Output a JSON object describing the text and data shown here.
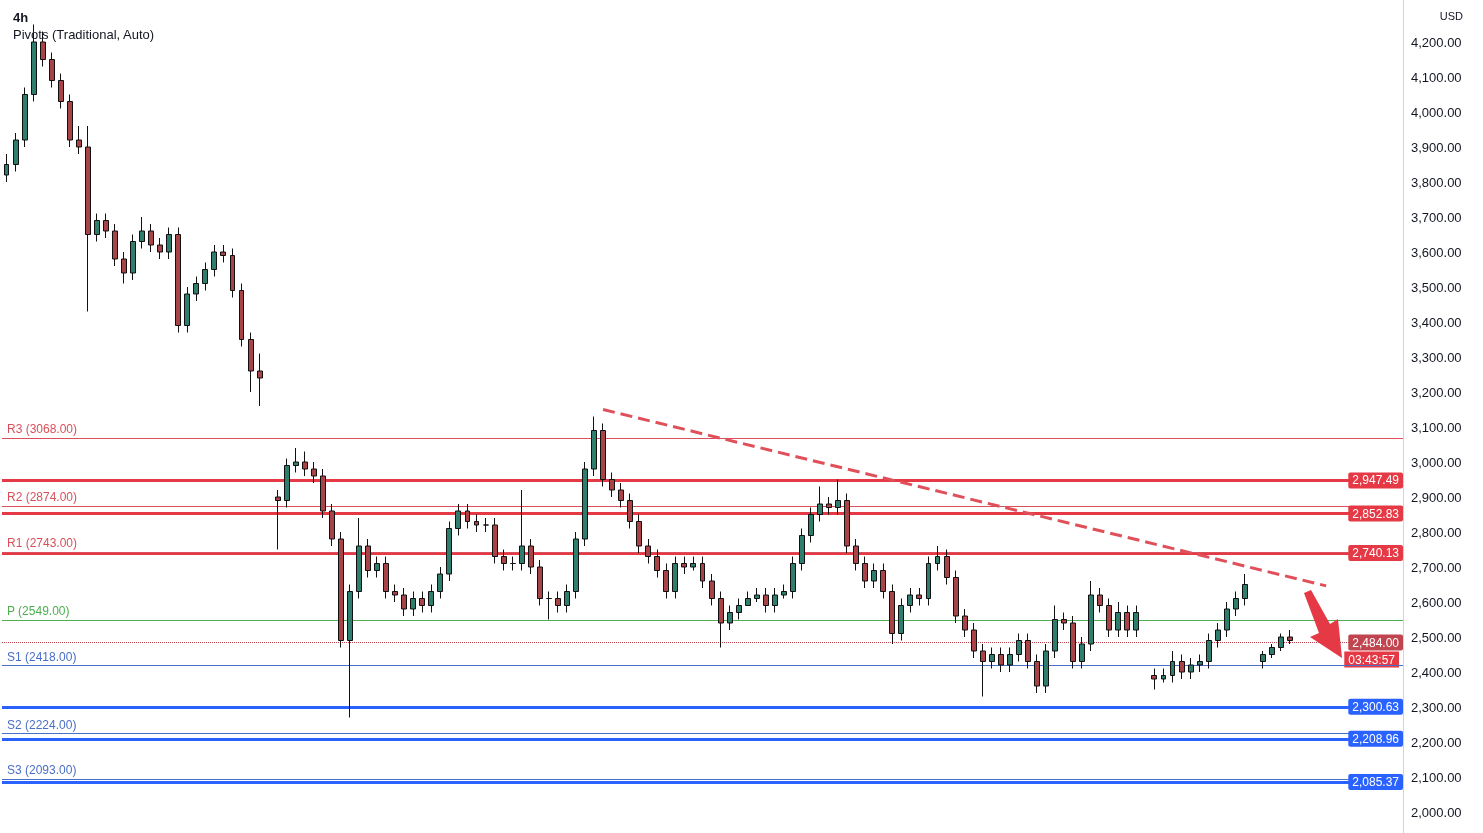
{
  "chart_data": {
    "type": "candlestick",
    "title": "4h",
    "subtitle": "Pivots (Traditional, Auto)",
    "tick_labels": "y",
    "categories": [
      null,
      null,
      null,
      null,
      null,
      null,
      null,
      null,
      null,
      null,
      null,
      null,
      null,
      null,
      null,
      null,
      null,
      null,
      null,
      null,
      null,
      null,
      null,
      null,
      null,
      null,
      null,
      null,
      null,
      null,
      null,
      null,
      null,
      null,
      null,
      null,
      null,
      null,
      null,
      null,
      null,
      null,
      null,
      null,
      null,
      null,
      null,
      null,
      null,
      null,
      null,
      null,
      null,
      null,
      null,
      null,
      null,
      null,
      null,
      null,
      null,
      null,
      null,
      null,
      null,
      null,
      null,
      null,
      null,
      null,
      null,
      null,
      null,
      null,
      null,
      null,
      null,
      null,
      null,
      null,
      null,
      null,
      null,
      null,
      null,
      null,
      null,
      null,
      null,
      null,
      null,
      null,
      null,
      null,
      null,
      null,
      null,
      null,
      null,
      null,
      null,
      null,
      null,
      null,
      null,
      null,
      null,
      null,
      null,
      null,
      null,
      null,
      null,
      null,
      null,
      null,
      null,
      null,
      null,
      null,
      null,
      null,
      null,
      null,
      null,
      null,
      null,
      null,
      null,
      null,
      null,
      null,
      null,
      null,
      null,
      null,
      null,
      null,
      null,
      null,
      null,
      null,
      null,
      null,
      null,
      null,
      null,
      null,
      null,
      null,
      null,
      null,
      null,
      null,
      null
    ],
    "ohlc": [
      [
        3820,
        3880,
        3800,
        3850
      ],
      [
        3850,
        3940,
        3830,
        3920
      ],
      [
        3920,
        4070,
        3900,
        4050
      ],
      [
        4050,
        4250,
        4030,
        4200
      ],
      [
        4200,
        4230,
        4130,
        4150
      ],
      [
        4150,
        4170,
        4070,
        4090
      ],
      [
        4090,
        4110,
        4010,
        4030
      ],
      [
        4030,
        4050,
        3900,
        3920
      ],
      [
        3920,
        3960,
        3880,
        3900
      ],
      [
        3900,
        3960,
        3430,
        3650
      ],
      [
        3650,
        3710,
        3630,
        3690
      ],
      [
        3690,
        3710,
        3640,
        3660
      ],
      [
        3660,
        3680,
        3560,
        3580
      ],
      [
        3580,
        3600,
        3510,
        3540
      ],
      [
        3540,
        3650,
        3520,
        3630
      ],
      [
        3630,
        3700,
        3610,
        3660
      ],
      [
        3660,
        3680,
        3600,
        3620
      ],
      [
        3620,
        3640,
        3580,
        3600
      ],
      [
        3600,
        3670,
        3580,
        3650
      ],
      [
        3650,
        3670,
        3370,
        3390
      ],
      [
        3390,
        3500,
        3370,
        3480
      ],
      [
        3480,
        3530,
        3460,
        3510
      ],
      [
        3510,
        3570,
        3490,
        3550
      ],
      [
        3550,
        3620,
        3530,
        3600
      ],
      [
        3600,
        3620,
        3570,
        3590
      ],
      [
        3590,
        3610,
        3470,
        3490
      ],
      [
        3490,
        3510,
        3330,
        3350
      ],
      [
        3350,
        3370,
        3200,
        3260
      ],
      [
        3260,
        3310,
        3160,
        3240
      ],
      null,
      [
        2900,
        2920,
        2750,
        2890
      ],
      [
        2890,
        3010,
        2870,
        2990
      ],
      [
        2990,
        3040,
        2970,
        3000
      ],
      [
        3000,
        3030,
        2960,
        2980
      ],
      [
        2980,
        3000,
        2940,
        2960
      ],
      [
        2960,
        2980,
        2840,
        2860
      ],
      [
        2860,
        2880,
        2760,
        2780
      ],
      [
        2780,
        2800,
        2470,
        2490
      ],
      [
        2490,
        2650,
        2270,
        2630
      ],
      [
        2630,
        2840,
        2610,
        2760
      ],
      [
        2760,
        2780,
        2670,
        2690
      ],
      [
        2690,
        2730,
        2670,
        2710
      ],
      [
        2710,
        2730,
        2610,
        2630
      ],
      [
        2630,
        2650,
        2600,
        2620
      ],
      [
        2620,
        2640,
        2560,
        2580
      ],
      [
        2580,
        2630,
        2560,
        2610
      ],
      [
        2610,
        2630,
        2570,
        2590
      ],
      [
        2590,
        2650,
        2570,
        2630
      ],
      [
        2630,
        2700,
        2610,
        2680
      ],
      [
        2680,
        2830,
        2660,
        2810
      ],
      [
        2810,
        2880,
        2790,
        2860
      ],
      [
        2860,
        2880,
        2810,
        2830
      ],
      [
        2830,
        2850,
        2800,
        2820
      ],
      [
        2820,
        2840,
        2800,
        2820
      ],
      [
        2820,
        2840,
        2710,
        2730
      ],
      [
        2730,
        2750,
        2690,
        2710
      ],
      [
        2710,
        2730,
        2690,
        2710
      ],
      [
        2710,
        2920,
        2690,
        2760
      ],
      [
        2760,
        2780,
        2680,
        2700
      ],
      [
        2700,
        2720,
        2590,
        2610
      ],
      [
        2610,
        2630,
        2550,
        2610
      ],
      [
        2610,
        2630,
        2570,
        2590
      ],
      [
        2590,
        2650,
        2570,
        2630
      ],
      [
        2630,
        2800,
        2610,
        2780
      ],
      [
        2780,
        3000,
        2760,
        2980
      ],
      [
        2980,
        3130,
        2960,
        3090
      ],
      [
        3090,
        3110,
        2930,
        2950
      ],
      [
        2950,
        2970,
        2900,
        2920
      ],
      [
        2920,
        2940,
        2870,
        2890
      ],
      [
        2890,
        2910,
        2810,
        2830
      ],
      [
        2830,
        2850,
        2740,
        2760
      ],
      [
        2760,
        2780,
        2710,
        2730
      ],
      [
        2730,
        2750,
        2670,
        2690
      ],
      [
        2690,
        2710,
        2610,
        2630
      ],
      [
        2630,
        2730,
        2610,
        2710
      ],
      [
        2710,
        2730,
        2680,
        2700
      ],
      [
        2700,
        2730,
        2690,
        2710
      ],
      [
        2710,
        2730,
        2640,
        2660
      ],
      [
        2660,
        2680,
        2590,
        2610
      ],
      [
        2610,
        2630,
        2470,
        2540
      ],
      [
        2540,
        2590,
        2520,
        2570
      ],
      [
        2570,
        2610,
        2550,
        2590
      ],
      [
        2590,
        2630,
        2590,
        2610
      ],
      [
        2610,
        2640,
        2600,
        2620
      ],
      [
        2620,
        2640,
        2570,
        2590
      ],
      [
        2590,
        2640,
        2570,
        2620
      ],
      [
        2620,
        2650,
        2610,
        2630
      ],
      [
        2630,
        2730,
        2610,
        2710
      ],
      [
        2710,
        2810,
        2690,
        2790
      ],
      [
        2790,
        2870,
        2770,
        2850
      ],
      [
        2850,
        2930,
        2830,
        2880
      ],
      [
        2880,
        2900,
        2850,
        2870
      ],
      [
        2870,
        2950,
        2850,
        2890
      ],
      [
        2890,
        2910,
        2740,
        2760
      ],
      [
        2760,
        2780,
        2690,
        2710
      ],
      [
        2710,
        2730,
        2640,
        2660
      ],
      [
        2660,
        2710,
        2640,
        2690
      ],
      [
        2690,
        2710,
        2610,
        2630
      ],
      [
        2630,
        2650,
        2480,
        2510
      ],
      [
        2510,
        2610,
        2490,
        2590
      ],
      [
        2590,
        2640,
        2570,
        2620
      ],
      [
        2620,
        2640,
        2590,
        2610
      ],
      [
        2610,
        2730,
        2590,
        2710
      ],
      [
        2710,
        2760,
        2690,
        2730
      ],
      [
        2730,
        2750,
        2650,
        2670
      ],
      [
        2670,
        2690,
        2540,
        2560
      ],
      [
        2560,
        2580,
        2500,
        2520
      ],
      [
        2520,
        2540,
        2440,
        2460
      ],
      [
        2460,
        2480,
        2330,
        2430
      ],
      [
        2430,
        2470,
        2410,
        2450
      ],
      [
        2450,
        2470,
        2400,
        2420
      ],
      [
        2420,
        2470,
        2400,
        2450
      ],
      [
        2450,
        2510,
        2430,
        2490
      ],
      [
        2490,
        2510,
        2410,
        2430
      ],
      [
        2430,
        2450,
        2340,
        2360
      ],
      [
        2360,
        2480,
        2340,
        2460
      ],
      [
        2460,
        2590,
        2440,
        2550
      ],
      [
        2550,
        2570,
        2520,
        2540
      ],
      [
        2540,
        2560,
        2410,
        2430
      ],
      [
        2430,
        2500,
        2410,
        2480
      ],
      [
        2480,
        2660,
        2460,
        2620
      ],
      [
        2620,
        2640,
        2570,
        2590
      ],
      [
        2590,
        2610,
        2500,
        2520
      ],
      [
        2520,
        2600,
        2500,
        2570
      ],
      [
        2570,
        2590,
        2500,
        2520
      ],
      [
        2520,
        2590,
        2500,
        2570
      ],
      null,
      [
        2390,
        2410,
        2350,
        2380
      ],
      [
        2380,
        2410,
        2370,
        2390
      ],
      [
        2390,
        2460,
        2370,
        2430
      ],
      [
        2430,
        2450,
        2380,
        2400
      ],
      [
        2400,
        2440,
        2380,
        2420
      ],
      [
        2420,
        2450,
        2400,
        2430
      ],
      [
        2430,
        2510,
        2410,
        2490
      ],
      [
        2490,
        2540,
        2470,
        2520
      ],
      [
        2520,
        2600,
        2500,
        2580
      ],
      [
        2580,
        2630,
        2560,
        2610
      ],
      [
        2610,
        2680,
        2590,
        2650
      ],
      null,
      [
        2430,
        2460,
        2410,
        2450
      ],
      [
        2450,
        2480,
        2440,
        2470
      ],
      [
        2470,
        2510,
        2460,
        2500
      ],
      [
        2500,
        2520,
        2480,
        2490
      ],
      null,
      null,
      null,
      null,
      null,
      null,
      null,
      null,
      null,
      null,
      null,
      null
    ],
    "series": [
      {
        "type": "line",
        "color": "#e0505a",
        "line_style": "dashed",
        "values": [
          null,
          null,
          null,
          null,
          null,
          null,
          null,
          null,
          null,
          null,
          null,
          null,
          null,
          null,
          null,
          null,
          null,
          null,
          null,
          null,
          null,
          null,
          null,
          null,
          null,
          null,
          null,
          null,
          null,
          null,
          null,
          null,
          null,
          null,
          null,
          null,
          null,
          null,
          null,
          null,
          null,
          null,
          null,
          null,
          null,
          null,
          null,
          null,
          null,
          null,
          null,
          null,
          null,
          null,
          null,
          null,
          null,
          null,
          null,
          null,
          null,
          null,
          null,
          null,
          null,
          null,
          3150,
          null,
          null,
          null,
          null,
          null,
          null,
          null,
          null,
          null,
          null,
          null,
          null,
          null,
          null,
          null,
          null,
          null,
          null,
          null,
          null,
          null,
          null,
          null,
          null,
          null,
          null,
          null,
          null,
          null,
          null,
          null,
          null,
          null,
          null,
          null,
          null,
          null,
          null,
          null,
          null,
          null,
          null,
          null,
          null,
          null,
          null,
          null,
          null,
          null,
          null,
          null,
          null,
          null,
          null,
          null,
          null,
          null,
          null,
          null,
          null,
          null,
          null,
          null,
          null,
          null,
          null,
          null,
          null,
          null,
          null,
          null,
          null,
          null,
          null,
          null,
          null,
          null,
          null,
          null,
          2646,
          null,
          null,
          null,
          null,
          null,
          null,
          null,
          null
        ]
      }
    ],
    "ylim": [
      1940,
      4320
    ],
    "yticks": [
      {
        "value": 2000,
        "label": "2,000.00"
      },
      {
        "value": 2100,
        "label": "2,100.00"
      },
      {
        "value": 2200,
        "label": "2,200.00"
      },
      {
        "value": 2300,
        "label": "2,300.00"
      },
      {
        "value": 2400,
        "label": "2,400.00"
      },
      {
        "value": 2500,
        "label": "2,500.00"
      },
      {
        "value": 2600,
        "label": "2,600.00"
      },
      {
        "value": 2700,
        "label": "2,700.00"
      },
      {
        "value": 2800,
        "label": "2,800.00"
      },
      {
        "value": 2900,
        "label": "2,900.00"
      },
      {
        "value": 3000,
        "label": "3,000.00"
      },
      {
        "value": 3100,
        "label": "3,100.00"
      },
      {
        "value": 3200,
        "label": "3,200.00"
      },
      {
        "value": 3300,
        "label": "3,300.00"
      },
      {
        "value": 3400,
        "label": "3,400.00"
      },
      {
        "value": 3500,
        "label": "3,500.00"
      },
      {
        "value": 3600,
        "label": "3,600.00"
      },
      {
        "value": 3700,
        "label": "3,700.00"
      },
      {
        "value": 3800,
        "label": "3,800.00"
      },
      {
        "value": 3900,
        "label": "3,900.00"
      },
      {
        "value": 4000,
        "label": "4,000.00"
      },
      {
        "value": 4100,
        "label": "4,100.00"
      },
      {
        "value": 4200,
        "label": "4,200.00"
      }
    ],
    "ref_lines": [
      {
        "axis": "y",
        "value": 3068,
        "label": "R3 (3068.00)",
        "color": "#d9505a"
      },
      {
        "axis": "y",
        "value": 2947.49,
        "label": "2,947.49",
        "color": "#e53945"
      },
      {
        "axis": "y",
        "value": 2874,
        "label": "R2 (2874.00)",
        "color": "#d9505a"
      },
      {
        "axis": "y",
        "value": 2852.83,
        "label": "2,852.83",
        "color": "#e53945"
      },
      {
        "axis": "y",
        "value": 2743,
        "label": "R1 (2743.00)",
        "color": "#d9505a"
      },
      {
        "axis": "y",
        "value": 2740.13,
        "label": "2,740.13",
        "color": "#e53945"
      },
      {
        "axis": "y",
        "value": 2549,
        "label": "P (2549.00)",
        "color": "#4caf50"
      },
      {
        "axis": "y",
        "value": 2484,
        "label": "2,484.00",
        "color": "#c0454e",
        "line_style": "dotted"
      },
      {
        "axis": "y",
        "value": 2418,
        "label": "S1 (2418.00)",
        "color": "#4a6fc7"
      },
      {
        "axis": "y",
        "value": 2300.63,
        "label": "2,300.63",
        "color": "#2962ff"
      },
      {
        "axis": "y",
        "value": 2224,
        "label": "S2 (2224.00)",
        "color": "#4a6fc7"
      },
      {
        "axis": "y",
        "value": 2208.96,
        "label": "2,208.96",
        "color": "#2962ff"
      },
      {
        "axis": "y",
        "value": 2093,
        "label": "S3 (2093.00)",
        "color": "#4a6fc7"
      },
      {
        "axis": "y",
        "value": 2085.37,
        "label": "2,085.37",
        "color": "#2962ff"
      }
    ],
    "annotations": [
      "USD",
      "03:43:57"
    ]
  }
}
